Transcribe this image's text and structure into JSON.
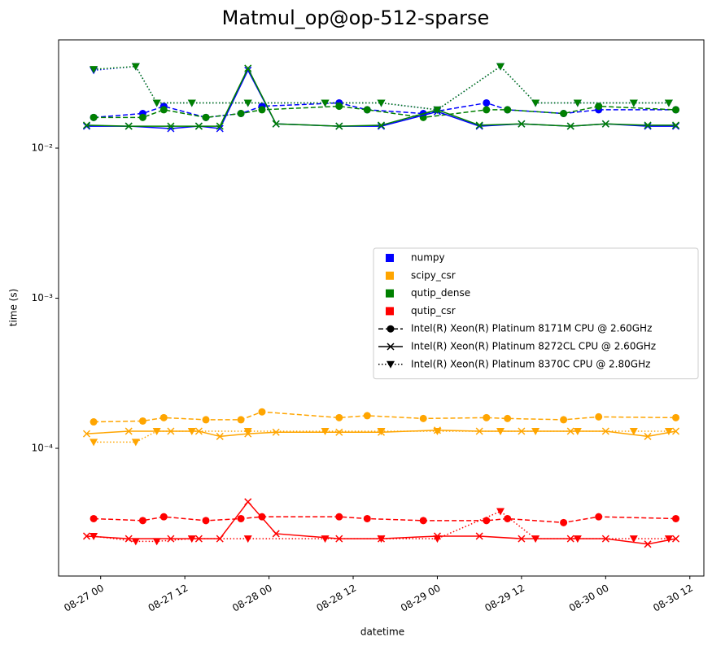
{
  "chart_data": {
    "type": "line",
    "title": "Matmul_op@op-512-sparse",
    "xlabel": "datetime",
    "ylabel": "time (s)",
    "log_y": true,
    "legend_position": "center right",
    "xlim": [
      "08-26 18",
      "08-30 14"
    ],
    "xticks": [
      "08-27 00",
      "08-27 12",
      "08-28 00",
      "08-28 12",
      "08-29 00",
      "08-29 12",
      "08-30 00",
      "08-30 12"
    ],
    "ylim": [
      1.41e-05,
      0.0526
    ],
    "yticks": [
      {
        "value": 0.0001,
        "label": "10⁻⁴"
      },
      {
        "value": 0.001,
        "label": "10⁻³"
      },
      {
        "value": 0.01,
        "label": "10⁻²"
      }
    ],
    "cpu_styles": [
      {
        "name": "Intel(R) Xeon(R) Platinum 8171M CPU @ 2.60GHz",
        "linestyle": "dashed",
        "marker": "circle"
      },
      {
        "name": "Intel(R) Xeon(R) Platinum 8272CL CPU @ 2.60GHz",
        "linestyle": "solid",
        "marker": "x"
      },
      {
        "name": "Intel(R) Xeon(R) Platinum 8370C CPU @ 2.80GHz",
        "linestyle": "dotted",
        "marker": "triangle_down"
      }
    ],
    "series": [
      {
        "name": "numpy",
        "color": "#0000ff",
        "cpu": "Intel(R) Xeon(R) Platinum 8171M CPU @ 2.60GHz",
        "x": [
          "08-26 23",
          "08-27 06",
          "08-27 09",
          "08-27 15",
          "08-27 20",
          "08-27 23",
          "08-28 10",
          "08-28 14",
          "08-28 22",
          "08-29 07",
          "08-29 10",
          "08-29 18",
          "08-29 23",
          "08-30 10"
        ],
        "values": [
          0.016,
          0.017,
          0.019,
          0.016,
          0.017,
          0.019,
          0.02,
          0.018,
          0.017,
          0.02,
          0.018,
          0.017,
          0.018,
          0.018
        ]
      },
      {
        "name": "scipy_csr",
        "color": "#ffa500",
        "cpu": "Intel(R) Xeon(R) Platinum 8171M CPU @ 2.60GHz",
        "x": [
          "08-26 23",
          "08-27 06",
          "08-27 09",
          "08-27 15",
          "08-27 20",
          "08-27 23",
          "08-28 10",
          "08-28 14",
          "08-28 22",
          "08-29 07",
          "08-29 10",
          "08-29 18",
          "08-29 23",
          "08-30 10"
        ],
        "values": [
          0.00015,
          0.000152,
          0.00016,
          0.000155,
          0.000155,
          0.000175,
          0.00016,
          0.000165,
          0.000158,
          0.00016,
          0.000158,
          0.000155,
          0.000162,
          0.00016
        ]
      },
      {
        "name": "qutip_dense",
        "color": "#008000",
        "cpu": "Intel(R) Xeon(R) Platinum 8171M CPU @ 2.60GHz",
        "x": [
          "08-26 23",
          "08-27 06",
          "08-27 09",
          "08-27 15",
          "08-27 20",
          "08-27 23",
          "08-28 10",
          "08-28 14",
          "08-28 22",
          "08-29 07",
          "08-29 10",
          "08-29 18",
          "08-29 23",
          "08-30 10"
        ],
        "values": [
          0.016,
          0.016,
          0.018,
          0.016,
          0.017,
          0.018,
          0.019,
          0.018,
          0.016,
          0.018,
          0.018,
          0.017,
          0.019,
          0.018
        ]
      },
      {
        "name": "qutip_csr",
        "color": "#ff0000",
        "cpu": "Intel(R) Xeon(R) Platinum 8171M CPU @ 2.60GHz",
        "x": [
          "08-26 23",
          "08-27 06",
          "08-27 09",
          "08-27 15",
          "08-27 20",
          "08-27 23",
          "08-28 10",
          "08-28 14",
          "08-28 22",
          "08-29 07",
          "08-29 10",
          "08-29 18",
          "08-29 23",
          "08-30 10"
        ],
        "values": [
          3.4e-05,
          3.3e-05,
          3.5e-05,
          3.3e-05,
          3.4e-05,
          3.5e-05,
          3.5e-05,
          3.4e-05,
          3.3e-05,
          3.3e-05,
          3.4e-05,
          3.2e-05,
          3.5e-05,
          3.4e-05
        ]
      },
      {
        "name": "numpy",
        "color": "#0000ff",
        "cpu": "Intel(R) Xeon(R) Platinum 8272CL CPU @ 2.60GHz",
        "x": [
          "08-26 22",
          "08-27 04",
          "08-27 10",
          "08-27 14",
          "08-27 17",
          "08-27 21",
          "08-28 01",
          "08-28 10",
          "08-28 16",
          "08-29 00",
          "08-29 06",
          "08-29 12",
          "08-29 19",
          "08-30 00",
          "08-30 06",
          "08-30 10"
        ],
        "values": [
          0.014,
          0.014,
          0.0135,
          0.014,
          0.0135,
          0.033,
          0.0145,
          0.014,
          0.014,
          0.0175,
          0.014,
          0.0145,
          0.014,
          0.0145,
          0.014,
          0.014
        ]
      },
      {
        "name": "scipy_csr",
        "color": "#ffa500",
        "cpu": "Intel(R) Xeon(R) Platinum 8272CL CPU @ 2.60GHz",
        "x": [
          "08-26 22",
          "08-27 04",
          "08-27 10",
          "08-27 14",
          "08-27 17",
          "08-27 21",
          "08-28 01",
          "08-28 10",
          "08-28 16",
          "08-29 00",
          "08-29 06",
          "08-29 12",
          "08-29 19",
          "08-30 00",
          "08-30 06",
          "08-30 10"
        ],
        "values": [
          0.000125,
          0.00013,
          0.00013,
          0.00013,
          0.00012,
          0.000125,
          0.000128,
          0.000128,
          0.000128,
          0.000132,
          0.00013,
          0.00013,
          0.00013,
          0.00013,
          0.00012,
          0.00013
        ]
      },
      {
        "name": "qutip_dense",
        "color": "#008000",
        "cpu": "Intel(R) Xeon(R) Platinum 8272CL CPU @ 2.60GHz",
        "x": [
          "08-26 22",
          "08-27 04",
          "08-27 10",
          "08-27 14",
          "08-27 17",
          "08-27 21",
          "08-28 01",
          "08-28 10",
          "08-28 16",
          "08-29 00",
          "08-29 06",
          "08-29 12",
          "08-29 19",
          "08-30 00",
          "08-30 06",
          "08-30 10"
        ],
        "values": [
          0.0142,
          0.014,
          0.014,
          0.014,
          0.014,
          0.034,
          0.0145,
          0.014,
          0.0142,
          0.018,
          0.0142,
          0.0145,
          0.014,
          0.0145,
          0.0142,
          0.0142
        ]
      },
      {
        "name": "qutip_csr",
        "color": "#ff0000",
        "cpu": "Intel(R) Xeon(R) Platinum 8272CL CPU @ 2.60GHz",
        "x": [
          "08-26 22",
          "08-27 04",
          "08-27 10",
          "08-27 14",
          "08-27 17",
          "08-27 21",
          "08-28 01",
          "08-28 10",
          "08-28 16",
          "08-29 00",
          "08-29 06",
          "08-29 12",
          "08-29 19",
          "08-30 00",
          "08-30 06",
          "08-30 10"
        ],
        "values": [
          2.6e-05,
          2.5e-05,
          2.5e-05,
          2.5e-05,
          2.5e-05,
          4.4e-05,
          2.7e-05,
          2.5e-05,
          2.5e-05,
          2.6e-05,
          2.6e-05,
          2.5e-05,
          2.5e-05,
          2.5e-05,
          2.3e-05,
          2.5e-05
        ]
      },
      {
        "name": "numpy",
        "color": "#0000ff",
        "cpu": "Intel(R) Xeon(R) Platinum 8370C CPU @ 2.80GHz",
        "x": [
          "08-26 23",
          "08-27 05",
          "08-27 08",
          "08-27 13",
          "08-27 21",
          "08-28 08",
          "08-28 16",
          "08-29 00",
          "08-29 09",
          "08-29 14",
          "08-29 20",
          "08-30 04",
          "08-30 09"
        ],
        "values": [
          0.033,
          0.035,
          0.02,
          0.02,
          0.02,
          0.02,
          0.02,
          0.018,
          0.035,
          0.02,
          0.02,
          0.02,
          0.02
        ]
      },
      {
        "name": "scipy_csr",
        "color": "#ffa500",
        "cpu": "Intel(R) Xeon(R) Platinum 8370C CPU @ 2.80GHz",
        "x": [
          "08-26 23",
          "08-27 05",
          "08-27 08",
          "08-27 13",
          "08-27 21",
          "08-28 08",
          "08-28 16",
          "08-29 00",
          "08-29 09",
          "08-29 14",
          "08-29 20",
          "08-30 04",
          "08-30 09"
        ],
        "values": [
          0.00011,
          0.00011,
          0.00013,
          0.00013,
          0.00013,
          0.00013,
          0.00013,
          0.00013,
          0.00013,
          0.00013,
          0.00013,
          0.00013,
          0.00013
        ]
      },
      {
        "name": "qutip_dense",
        "color": "#008000",
        "cpu": "Intel(R) Xeon(R) Platinum 8370C CPU @ 2.80GHz",
        "x": [
          "08-26 23",
          "08-27 05",
          "08-27 08",
          "08-27 13",
          "08-27 21",
          "08-28 08",
          "08-28 16",
          "08-29 00",
          "08-29 09",
          "08-29 14",
          "08-29 20",
          "08-30 04",
          "08-30 09"
        ],
        "values": [
          0.0335,
          0.035,
          0.02,
          0.02,
          0.02,
          0.02,
          0.02,
          0.018,
          0.035,
          0.02,
          0.02,
          0.02,
          0.02
        ]
      },
      {
        "name": "qutip_csr",
        "color": "#ff0000",
        "cpu": "Intel(R) Xeon(R) Platinum 8370C CPU @ 2.80GHz",
        "x": [
          "08-26 23",
          "08-27 05",
          "08-27 08",
          "08-27 13",
          "08-27 21",
          "08-28 08",
          "08-28 16",
          "08-29 00",
          "08-29 09",
          "08-29 14",
          "08-29 20",
          "08-30 04",
          "08-30 09"
        ],
        "values": [
          2.6e-05,
          2.4e-05,
          2.4e-05,
          2.5e-05,
          2.5e-05,
          2.5e-05,
          2.5e-05,
          2.5e-05,
          3.8e-05,
          2.5e-05,
          2.5e-05,
          2.5e-05,
          2.5e-05
        ]
      }
    ]
  }
}
